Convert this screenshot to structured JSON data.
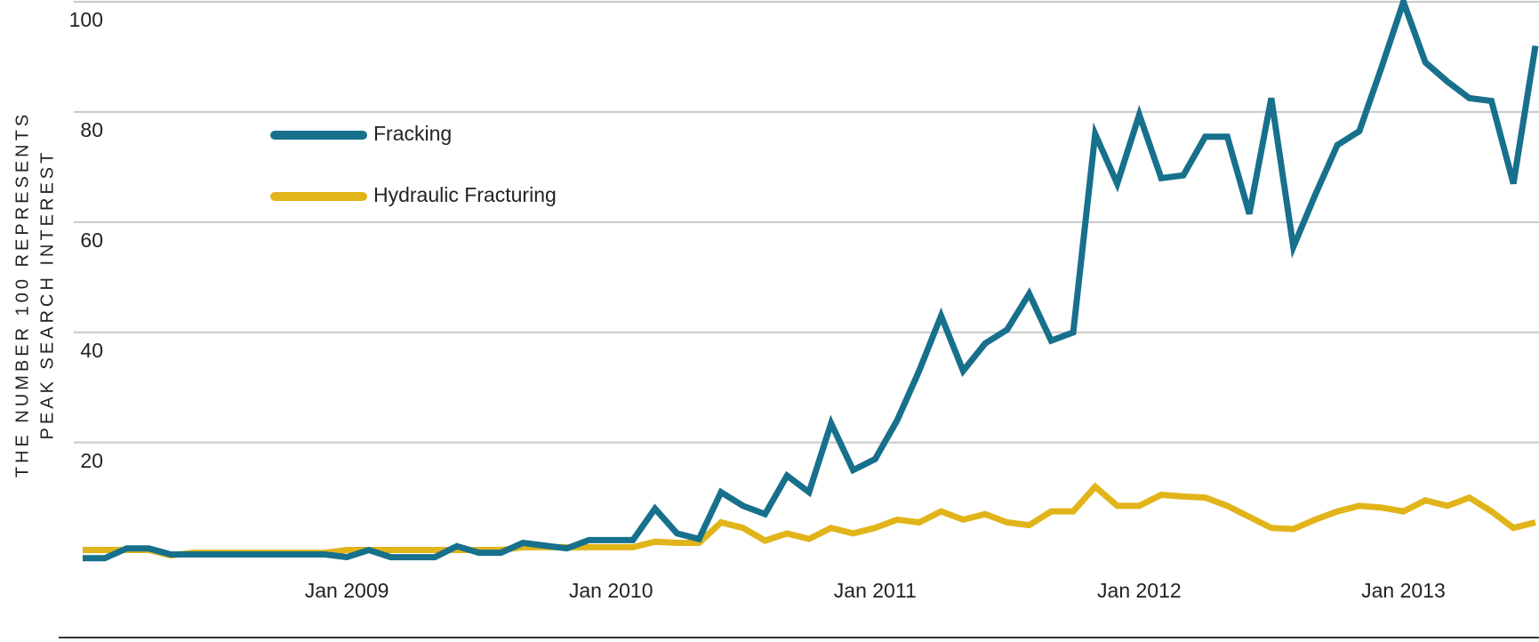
{
  "chart_data": {
    "type": "line",
    "y_axis_label": [
      "THE NUMBER 100 REPRESENTS",
      "PEAK SEARCH INTEREST"
    ],
    "categories": [
      null,
      null,
      null,
      null,
      null,
      null,
      null,
      null,
      null,
      null,
      null,
      null,
      "Jan 2009",
      null,
      null,
      null,
      null,
      null,
      null,
      null,
      null,
      null,
      null,
      null,
      "Jan 2010",
      null,
      null,
      null,
      null,
      null,
      null,
      null,
      null,
      null,
      null,
      null,
      "Jan 2011",
      null,
      null,
      null,
      null,
      null,
      null,
      null,
      null,
      null,
      null,
      null,
      "Jan 2012",
      null,
      null,
      null,
      null,
      null,
      null,
      null,
      null,
      null,
      null,
      null,
      "Jan 2013",
      null,
      null,
      null,
      null,
      null,
      null
    ],
    "series": [
      {
        "name": "Fracking",
        "color": "#17708c",
        "values": [
          -1,
          -1,
          0.8,
          0.8,
          -0.3,
          -0.3,
          -0.3,
          -0.3,
          -0.3,
          -0.3,
          -0.3,
          -0.3,
          -0.8,
          0.5,
          -0.8,
          -0.8,
          -0.8,
          1.2,
          0,
          0,
          1.8,
          1.3,
          0.8,
          2.3,
          2.3,
          2.3,
          8,
          3.5,
          2.5,
          11,
          8.5,
          7,
          14,
          11,
          23.5,
          15,
          17,
          24,
          33,
          43,
          33,
          38,
          40.5,
          47,
          38.5,
          40,
          76,
          67,
          79.5,
          68,
          68.5,
          75.5,
          75.5,
          61.5,
          82.5,
          55.5,
          65,
          74,
          76.5,
          88,
          100,
          89,
          85.5,
          82.5,
          82,
          67,
          92
        ]
      },
      {
        "name": "Hydraulic Fracturing",
        "color": "#e1b419",
        "values": [
          0.5,
          0.5,
          0.5,
          0.5,
          -0.5,
          0,
          0,
          0,
          0,
          0,
          0,
          0,
          0.5,
          0.5,
          0.5,
          0.5,
          0.5,
          0.5,
          0.5,
          0.5,
          1,
          1,
          1,
          1,
          1,
          1,
          2,
          1.8,
          1.8,
          5.5,
          4.5,
          2.2,
          3.5,
          2.5,
          4.5,
          3.5,
          4.5,
          6,
          5.5,
          7.5,
          6,
          7,
          5.5,
          5,
          7.5,
          7.5,
          12,
          8.5,
          8.5,
          10.5,
          10.2,
          10,
          8.5,
          6.5,
          4.5,
          4.3,
          6,
          7.5,
          8.5,
          8.2,
          7.5,
          9.5,
          8.5,
          10,
          7.5,
          4.5,
          5.5
        ]
      }
    ],
    "ylim": [
      -2,
      100
    ],
    "yticks": [
      20,
      40,
      60,
      80,
      100
    ],
    "grid": true
  }
}
